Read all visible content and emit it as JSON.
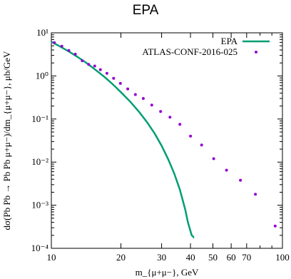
{
  "page": {
    "title": "EPA"
  },
  "chart_data": {
    "type": "line",
    "title": "EPA",
    "xlabel": "m_{μ+μ−}, GeV",
    "ylabel": "dσ(Pb Pb → Pb Pb μ+μ−)/dm_{μ+μ−}, μb/GeV",
    "xscale": "log",
    "yscale": "log",
    "xlim": [
      10,
      100
    ],
    "ylim": [
      0.0001,
      10
    ],
    "x_ticks": [
      10,
      20,
      30,
      40,
      50,
      60,
      70,
      100
    ],
    "x_tick_labels": [
      "10",
      "20",
      "30",
      "40",
      "50",
      "60",
      "70",
      "100"
    ],
    "y_ticks": [
      0.0001,
      0.001,
      0.01,
      0.1,
      1,
      10
    ],
    "y_tick_labels": [
      "10⁻⁴",
      "10⁻³",
      "10⁻²",
      "10⁻¹",
      "10⁰",
      "10¹"
    ],
    "grid": false,
    "legend": "top-right",
    "series": [
      {
        "name": "EPA",
        "kind": "line",
        "color": "#009e73",
        "x": [
          10,
          11,
          12,
          13,
          14,
          15,
          16,
          17,
          18,
          19,
          20,
          22,
          24,
          26,
          28,
          30,
          32,
          34,
          36,
          38,
          39,
          40,
          40.5,
          41,
          41.3,
          41.5
        ],
        "y": [
          6.2,
          4.7,
          3.6,
          2.75,
          2.1,
          1.6,
          1.22,
          0.94,
          0.72,
          0.55,
          0.42,
          0.25,
          0.145,
          0.083,
          0.046,
          0.024,
          0.0118,
          0.0055,
          0.0023,
          0.00078,
          0.0004,
          0.00025,
          0.0002,
          0.00019,
          0.00018,
          0.00018
        ]
      },
      {
        "name": "ATLAS-CONF-2016-025",
        "kind": "scatter",
        "color": "#9400d3",
        "x": [
          10.3,
          11.1,
          11.9,
          12.7,
          13.6,
          14.5,
          15.4,
          16.3,
          17.4,
          18.6,
          19.9,
          21.4,
          23.1,
          25.0,
          27.2,
          29.7,
          32.6,
          36.0,
          40.0,
          44.7,
          50.4,
          57.3,
          65.8,
          76.4,
          93.0
        ],
        "y": [
          5.9,
          4.9,
          3.9,
          3.2,
          2.25,
          1.85,
          1.7,
          1.4,
          1.15,
          0.88,
          0.67,
          0.5,
          0.37,
          0.3,
          0.21,
          0.15,
          0.11,
          0.075,
          0.04,
          0.025,
          0.012,
          0.0065,
          0.0038,
          0.0018,
          0.00033
        ]
      }
    ]
  }
}
